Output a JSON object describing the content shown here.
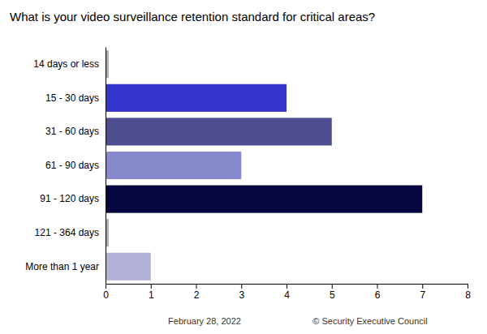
{
  "chart_data": {
    "type": "bar",
    "orientation": "horizontal",
    "title": "What is your video surveillance retention standard for critical areas?",
    "categories": [
      "14 days or less",
      "15 - 30 days",
      "31 - 60 days",
      "61 - 90 days",
      "91 - 120 days",
      "121 - 364 days",
      "More than 1 year"
    ],
    "values": [
      0.07,
      4,
      5,
      3,
      7,
      0.07,
      1
    ],
    "colors": [
      "#aaaaaa",
      "#3535cc",
      "#4d4d8f",
      "#8888cc",
      "#080840",
      "#aaaaaa",
      "#b0b0d8"
    ],
    "xlim": [
      0,
      8
    ],
    "xticks": [
      0,
      1,
      2,
      3,
      4,
      5,
      6,
      7,
      8
    ],
    "grid": false,
    "annotations": [
      "February 28, 2022",
      "© Security Executive Council"
    ]
  }
}
